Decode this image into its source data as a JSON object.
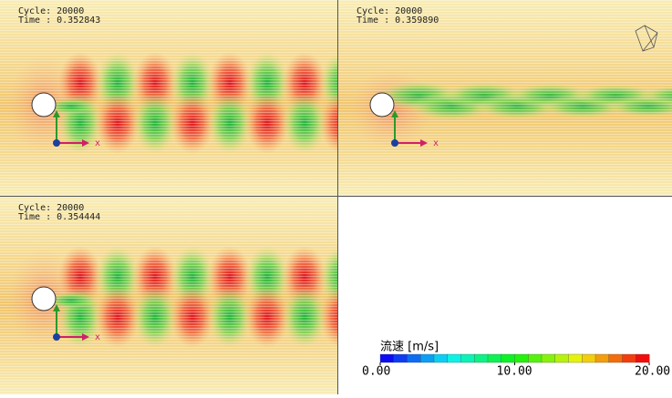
{
  "panels": [
    {
      "cycle": "Cycle: 20000",
      "time": "Time : 0.352843",
      "axis_label": "x"
    },
    {
      "cycle": "Cycle: 20000",
      "time": "Time : 0.359890",
      "axis_label": "x"
    },
    {
      "cycle": "Cycle: 20000",
      "time": "Time : 0.354444",
      "axis_label": "x"
    }
  ],
  "legend": {
    "title": "流速 [m/s]",
    "range": [
      0,
      20
    ],
    "ticks": [
      {
        "value": 0,
        "label": "0.00"
      },
      {
        "value": 10,
        "label": "10.00"
      },
      {
        "value": 20,
        "label": "20.00"
      }
    ]
  }
}
